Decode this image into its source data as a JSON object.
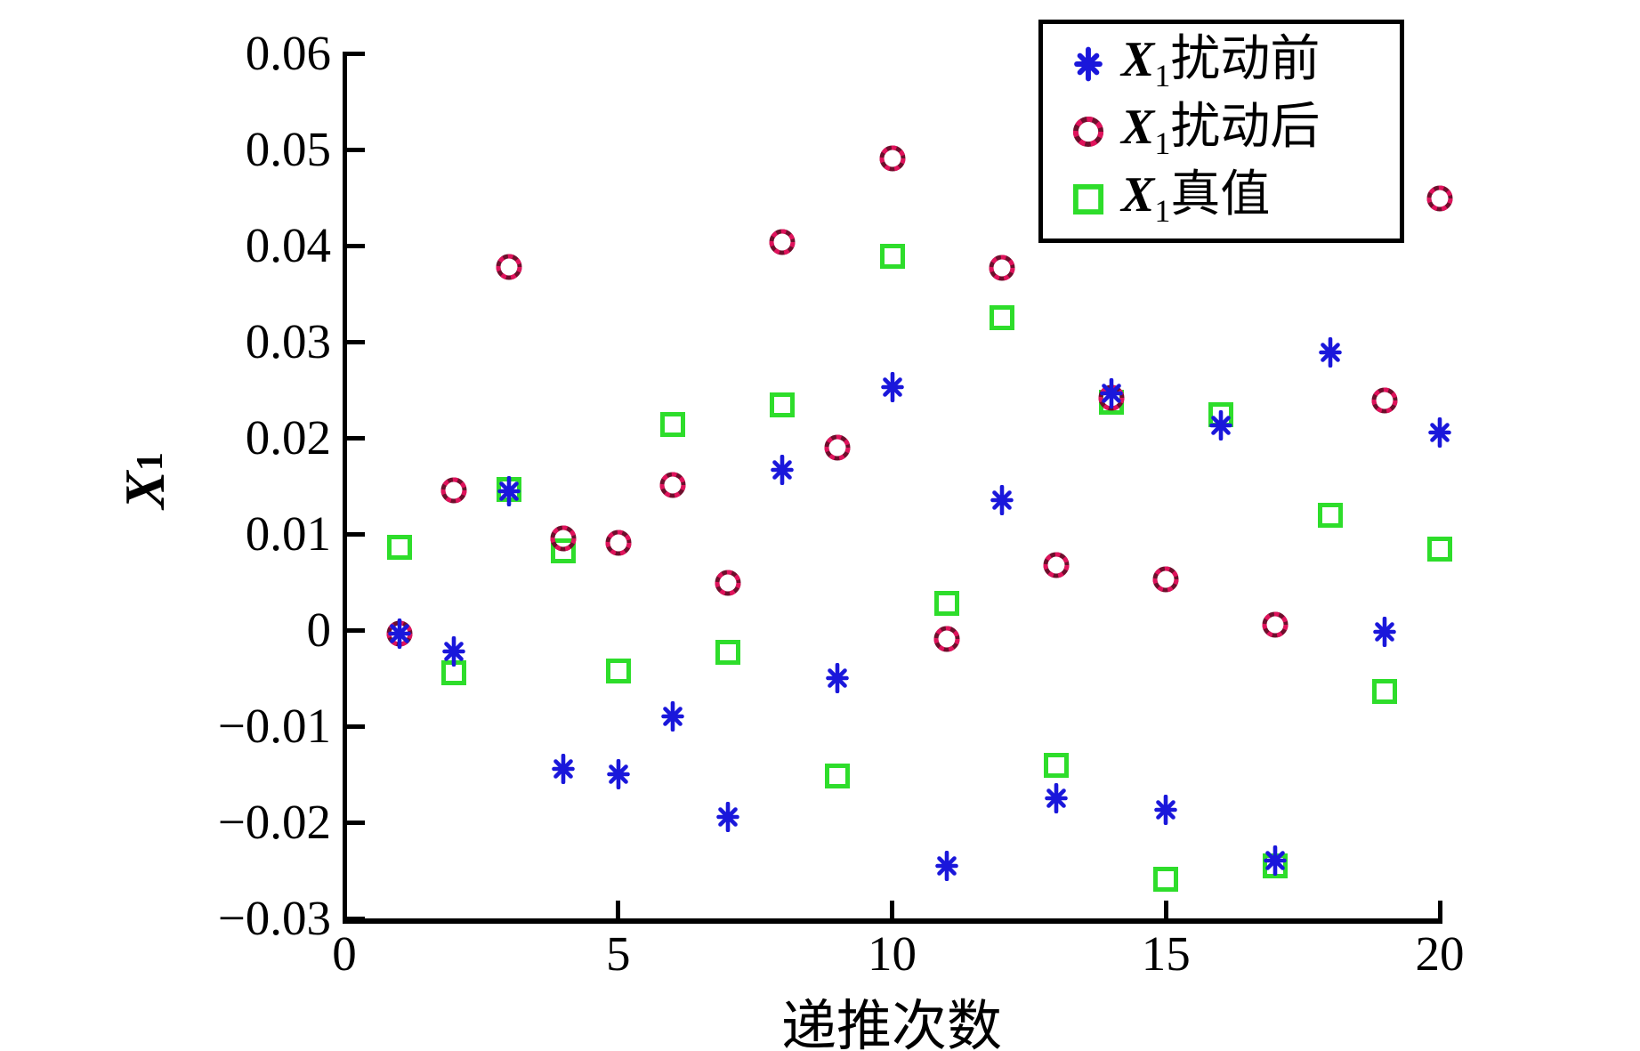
{
  "figure": {
    "background": "#ffffff",
    "axis_color": "#000000",
    "xlabel": "递推次数",
    "ylabel_var": "X",
    "ylabel_sub": "1",
    "colors": {
      "before": "#1A17DB",
      "after": "#E0135C",
      "after_dark": "#6E0E2C",
      "truth": "#2EDD2B"
    }
  },
  "legend": {
    "position": "top-right",
    "entries": [
      {
        "id": "before",
        "var": "X",
        "sub": "1",
        "text": "扰动前",
        "marker": "asterisk"
      },
      {
        "id": "after",
        "var": "X",
        "sub": "1",
        "text": "扰动后",
        "marker": "circle"
      },
      {
        "id": "truth",
        "var": "X",
        "sub": "1",
        "text": "真值",
        "marker": "square"
      }
    ]
  },
  "chart_data": {
    "type": "scatter",
    "title": "",
    "xlabel": "递推次数",
    "ylabel": "X1",
    "xlim": [
      0,
      20
    ],
    "ylim": [
      -0.03,
      0.06
    ],
    "x_ticks": [
      "0",
      "5",
      "10",
      "15",
      "20"
    ],
    "x_tick_values": [
      0,
      5,
      10,
      15,
      20
    ],
    "y_ticks": [
      "0.06",
      "0.05",
      "0.04",
      "0.03",
      "0.02",
      "0.01",
      "0",
      "−0.01",
      "−0.02",
      "−0.03"
    ],
    "y_tick_values": [
      0.06,
      0.05,
      0.04,
      0.03,
      0.02,
      0.01,
      0,
      -0.01,
      -0.02,
      -0.03
    ],
    "grid": false,
    "legend_position": "top-right",
    "x": [
      1,
      2,
      3,
      4,
      5,
      6,
      7,
      8,
      9,
      10,
      11,
      12,
      13,
      14,
      15,
      16,
      17,
      18,
      19,
      20
    ],
    "series": [
      {
        "name": "X1扰动前",
        "marker": "asterisk",
        "color_key": "before",
        "values": [
          -0.0004,
          -0.0022,
          0.0144,
          -0.0144,
          -0.015,
          -0.009,
          -0.0194,
          0.0167,
          -0.005,
          0.0253,
          -0.0245,
          0.0135,
          -0.0175,
          0.0246,
          -0.0187,
          0.0213,
          -0.024,
          0.0289,
          -0.0002,
          0.0206
        ]
      },
      {
        "name": "X1扰动后",
        "marker": "circle",
        "color_key": "after",
        "values": [
          -0.0004,
          0.0145,
          0.0378,
          0.0095,
          0.0091,
          0.0151,
          0.0049,
          0.0404,
          0.019,
          0.0491,
          -0.0009,
          0.0377,
          0.0068,
          0.0242,
          0.0053,
          null,
          0.0006,
          null,
          0.0239,
          0.0449
        ]
      },
      {
        "name": "X1真值",
        "marker": "square",
        "color_key": "truth",
        "values": [
          0.0086,
          -0.0044,
          0.0146,
          0.0082,
          -0.0043,
          0.0214,
          -0.0023,
          0.0234,
          -0.0152,
          0.0389,
          0.0028,
          0.0325,
          -0.0141,
          0.0237,
          -0.0259,
          0.0224,
          -0.0245,
          0.0119,
          -0.0064,
          0.0084
        ]
      }
    ]
  }
}
